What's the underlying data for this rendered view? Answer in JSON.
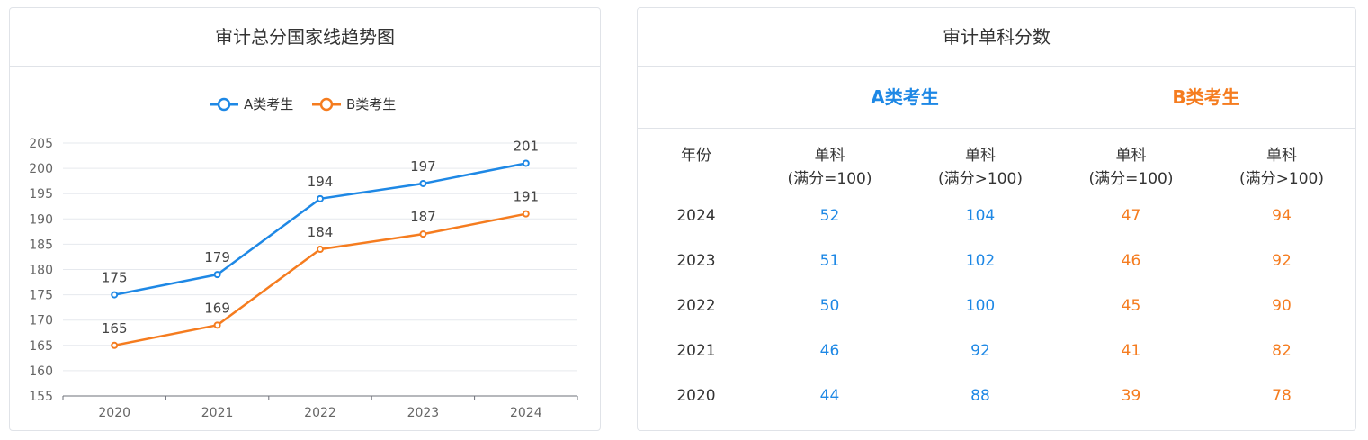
{
  "left_card": {
    "title": "审计总分国家线趋势图"
  },
  "chart_data": {
    "type": "line",
    "title": "审计总分国家线趋势图",
    "categories": [
      "2020",
      "2021",
      "2022",
      "2023",
      "2024"
    ],
    "series": [
      {
        "name": "A类考生",
        "values": [
          175,
          179,
          194,
          197,
          201
        ],
        "color": "#1e88e5"
      },
      {
        "name": "B类考生",
        "values": [
          165,
          169,
          184,
          187,
          191
        ],
        "color": "#f57c1f"
      }
    ],
    "ylim": [
      155,
      205
    ],
    "yticks": [
      155,
      160,
      165,
      170,
      175,
      180,
      185,
      190,
      195,
      200,
      205
    ],
    "legend_position": "top-center",
    "grid": true,
    "data_labels": true
  },
  "right_card": {
    "title": "审计单科分数",
    "group_a": "A类考生",
    "group_b": "B类考生",
    "columns": {
      "year": "年份",
      "a_100_line1": "单科",
      "a_100_line2": "(满分=100)",
      "a_gt100_line1": "单科",
      "a_gt100_line2": "(满分>100)",
      "b_100_line1": "单科",
      "b_100_line2": "(满分=100)",
      "b_gt100_line1": "单科",
      "b_gt100_line2": "(满分>100)"
    },
    "rows": [
      {
        "year": "2024",
        "a_100": "52",
        "a_gt100": "104",
        "b_100": "47",
        "b_gt100": "94"
      },
      {
        "year": "2023",
        "a_100": "51",
        "a_gt100": "102",
        "b_100": "46",
        "b_gt100": "92"
      },
      {
        "year": "2022",
        "a_100": "50",
        "a_gt100": "100",
        "b_100": "45",
        "b_gt100": "90"
      },
      {
        "year": "2021",
        "a_100": "46",
        "a_gt100": "92",
        "b_100": "41",
        "b_gt100": "82"
      },
      {
        "year": "2020",
        "a_100": "44",
        "a_gt100": "88",
        "b_100": "39",
        "b_gt100": "78"
      }
    ]
  }
}
